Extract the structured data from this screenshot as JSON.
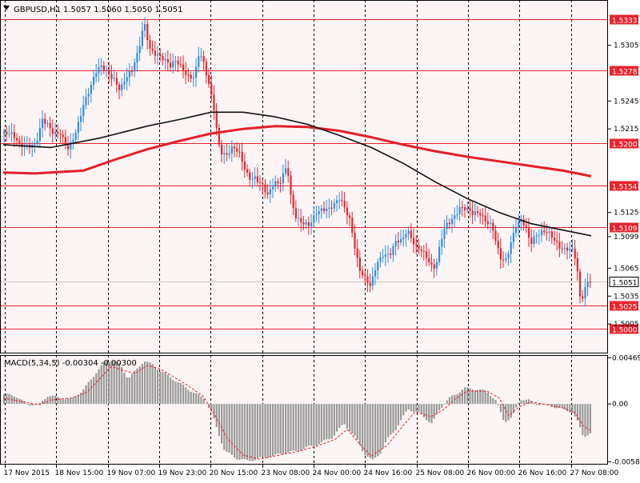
{
  "header": {
    "symbol": "GBPUSD,H1",
    "ohlc": "1.5057 1.5060 1.5050 1.5051",
    "dropdown_icon": "triangle-down-icon"
  },
  "indicator": {
    "label": "MACD(5,34,5) -0.00304 -0.00300"
  },
  "colors": {
    "background": "#fdf5f5",
    "grid": "#000000",
    "bull_candle": "#2b8ee8",
    "bear_candle": "#e8242c",
    "hline": "#e8242c",
    "ma_fast": "#111111",
    "ma_slow": "#e2202a",
    "macd_bar": "#999999",
    "macd_signal": "#e8242c",
    "current_price_line": "#c8c8c8"
  },
  "chart_data": [
    {
      "type": "candlestick",
      "symbol": "GBPUSD",
      "timeframe": "H1",
      "ylim": [
        1.4975,
        1.5352
      ],
      "y_tick_labels": [
        "1.5305",
        "1.5245",
        "1.5215",
        "1.5125",
        "1.5099",
        "1.5065",
        "1.5035",
        "1.5005"
      ],
      "x_tick_labels": [
        "17 Nov 2015",
        "18 Nov 15:00",
        "19 Nov 07:00",
        "19 Nov 23:00",
        "20 Nov 15:00",
        "23 Nov 08:00",
        "24 Nov 00:00",
        "24 Nov 16:00",
        "25 Nov 08:00",
        "26 Nov 00:00",
        "26 Nov 16:00",
        "27 Nov 08:00"
      ],
      "horizontal_levels": [
        {
          "label": "1.5333",
          "value": 1.5333
        },
        {
          "label": "1.5278",
          "value": 1.5278
        },
        {
          "label": "1.5200",
          "value": 1.52
        },
        {
          "label": "1.5154",
          "value": 1.5154
        },
        {
          "label": "1.5109",
          "value": 1.5109
        },
        {
          "label": "1.5025",
          "value": 1.5025
        },
        {
          "label": "1.5000",
          "value": 1.5
        }
      ],
      "current_price": {
        "label": "1.5051",
        "value": 1.5051
      },
      "close_path": [
        [
          0,
          1.521
        ],
        [
          10,
          1.5205
        ],
        [
          20,
          1.5195
        ],
        [
          30,
          1.52
        ],
        [
          40,
          1.5203
        ],
        [
          48,
          1.5225
        ],
        [
          55,
          1.5215
        ],
        [
          62,
          1.5205
        ],
        [
          70,
          1.521
        ],
        [
          80,
          1.5198
        ],
        [
          90,
          1.5215
        ],
        [
          100,
          1.524
        ],
        [
          108,
          1.5255
        ],
        [
          115,
          1.5275
        ],
        [
          122,
          1.5285
        ],
        [
          130,
          1.528
        ],
        [
          138,
          1.527
        ],
        [
          145,
          1.5255
        ],
        [
          152,
          1.5265
        ],
        [
          160,
          1.5275
        ],
        [
          168,
          1.53
        ],
        [
          175,
          1.5335
        ],
        [
          182,
          1.5305
        ],
        [
          190,
          1.5295
        ],
        [
          200,
          1.5285
        ],
        [
          208,
          1.528
        ],
        [
          215,
          1.529
        ],
        [
          222,
          1.5285
        ],
        [
          230,
          1.5275
        ],
        [
          238,
          1.527
        ],
        [
          244,
          1.5295
        ],
        [
          250,
          1.528
        ],
        [
          256,
          1.526
        ],
        [
          262,
          1.524
        ],
        [
          266,
          1.5215
        ],
        [
          270,
          1.5195
        ],
        [
          278,
          1.519
        ],
        [
          286,
          1.5195
        ],
        [
          294,
          1.5185
        ],
        [
          300,
          1.517
        ],
        [
          306,
          1.516
        ],
        [
          314,
          1.5165
        ],
        [
          322,
          1.516
        ],
        [
          330,
          1.5145
        ],
        [
          338,
          1.5155
        ],
        [
          344,
          1.515
        ],
        [
          350,
          1.5165
        ],
        [
          354,
          1.5175
        ],
        [
          358,
          1.5145
        ],
        [
          364,
          1.5125
        ],
        [
          370,
          1.512
        ],
        [
          376,
          1.5115
        ],
        [
          382,
          1.511
        ],
        [
          390,
          1.512
        ],
        [
          398,
          1.5125
        ],
        [
          406,
          1.513
        ],
        [
          414,
          1.514
        ],
        [
          420,
          1.5145
        ],
        [
          426,
          1.513
        ],
        [
          432,
          1.5115
        ],
        [
          438,
          1.5085
        ],
        [
          444,
          1.506
        ],
        [
          450,
          1.5055
        ],
        [
          458,
          1.505
        ],
        [
          466,
          1.5075
        ],
        [
          474,
          1.508
        ],
        [
          482,
          1.5075
        ],
        [
          490,
          1.509
        ],
        [
          498,
          1.5095
        ],
        [
          504,
          1.511
        ],
        [
          510,
          1.51
        ],
        [
          516,
          1.509
        ],
        [
          522,
          1.5085
        ],
        [
          530,
          1.507
        ],
        [
          536,
          1.506
        ],
        [
          540,
          1.5065
        ],
        [
          546,
          1.5095
        ],
        [
          552,
          1.5115
        ],
        [
          558,
          1.512
        ],
        [
          564,
          1.5125
        ],
        [
          570,
          1.513
        ],
        [
          578,
          1.5125
        ],
        [
          586,
          1.512
        ],
        [
          594,
          1.5125
        ],
        [
          602,
          1.512
        ],
        [
          610,
          1.5115
        ],
        [
          616,
          1.509
        ],
        [
          622,
          1.507
        ],
        [
          628,
          1.507
        ],
        [
          634,
          1.509
        ],
        [
          640,
          1.511
        ],
        [
          646,
          1.512
        ],
        [
          652,
          1.5115
        ],
        [
          658,
          1.5095
        ],
        [
          664,
          1.51
        ],
        [
          672,
          1.51
        ],
        [
          680,
          1.51
        ],
        [
          688,
          1.5095
        ],
        [
          696,
          1.509
        ],
        [
          704,
          1.509
        ],
        [
          712,
          1.5085
        ],
        [
          716,
          1.5065
        ],
        [
          720,
          1.503
        ],
        [
          724,
          1.503
        ],
        [
          728,
          1.5045
        ],
        [
          734,
          1.5051
        ]
      ],
      "ma_fast_path": [
        [
          0,
          1.5198
        ],
        [
          60,
          1.5195
        ],
        [
          120,
          1.5205
        ],
        [
          180,
          1.5218
        ],
        [
          220,
          1.5225
        ],
        [
          260,
          1.5233
        ],
        [
          300,
          1.5233
        ],
        [
          340,
          1.5228
        ],
        [
          380,
          1.522
        ],
        [
          420,
          1.5208
        ],
        [
          460,
          1.5195
        ],
        [
          500,
          1.5178
        ],
        [
          540,
          1.5158
        ],
        [
          580,
          1.514
        ],
        [
          620,
          1.5125
        ],
        [
          660,
          1.5113
        ],
        [
          700,
          1.5106
        ],
        [
          735,
          1.51
        ]
      ],
      "ma_slow_path": [
        [
          0,
          1.5168
        ],
        [
          40,
          1.5167
        ],
        [
          100,
          1.517
        ],
        [
          140,
          1.5182
        ],
        [
          180,
          1.5193
        ],
        [
          220,
          1.5202
        ],
        [
          260,
          1.521
        ],
        [
          300,
          1.5215
        ],
        [
          340,
          1.5218
        ],
        [
          380,
          1.5217
        ],
        [
          420,
          1.5213
        ],
        [
          460,
          1.5206
        ],
        [
          500,
          1.5198
        ],
        [
          540,
          1.5191
        ],
        [
          580,
          1.5185
        ],
        [
          620,
          1.518
        ],
        [
          660,
          1.5175
        ],
        [
          700,
          1.517
        ],
        [
          735,
          1.5164
        ]
      ]
    },
    {
      "type": "bar",
      "indicator": "MACD(5,34,5)",
      "ylim": [
        -0.006,
        0.0048
      ],
      "y_tick_labels": [
        "0.00469",
        "0.00",
        "-0.00588"
      ],
      "histogram_path": [
        [
          0,
          0.001
        ],
        [
          15,
          0.0008
        ],
        [
          30,
          -0.0001
        ],
        [
          45,
          0.0
        ],
        [
          55,
          0.0009
        ],
        [
          70,
          0.0006
        ],
        [
          85,
          0.0005
        ],
        [
          100,
          0.0015
        ],
        [
          115,
          0.0032
        ],
        [
          125,
          0.0042
        ],
        [
          135,
          0.0045
        ],
        [
          145,
          0.004
        ],
        [
          155,
          0.0026
        ],
        [
          165,
          0.0034
        ],
        [
          175,
          0.0044
        ],
        [
          185,
          0.004
        ],
        [
          195,
          0.0034
        ],
        [
          210,
          0.0026
        ],
        [
          225,
          0.0018
        ],
        [
          240,
          0.001
        ],
        [
          250,
          0.0006
        ],
        [
          260,
          -0.001
        ],
        [
          268,
          -0.003
        ],
        [
          276,
          -0.0048
        ],
        [
          290,
          -0.0055
        ],
        [
          305,
          -0.0058
        ],
        [
          320,
          -0.0055
        ],
        [
          335,
          -0.0053
        ],
        [
          350,
          -0.005
        ],
        [
          365,
          -0.0048
        ],
        [
          380,
          -0.0044
        ],
        [
          395,
          -0.004
        ],
        [
          410,
          -0.0034
        ],
        [
          425,
          -0.002
        ],
        [
          440,
          -0.0035
        ],
        [
          450,
          -0.005
        ],
        [
          460,
          -0.0058
        ],
        [
          470,
          -0.005
        ],
        [
          480,
          -0.0035
        ],
        [
          490,
          -0.0025
        ],
        [
          505,
          -0.0005
        ],
        [
          520,
          -0.001
        ],
        [
          535,
          -0.002
        ],
        [
          545,
          -0.0005
        ],
        [
          555,
          0.0005
        ],
        [
          565,
          0.001
        ],
        [
          575,
          0.0016
        ],
        [
          590,
          0.0015
        ],
        [
          605,
          0.0012
        ],
        [
          615,
          0.0003
        ],
        [
          625,
          -0.0018
        ],
        [
          635,
          -0.0014
        ],
        [
          645,
          0.0005
        ],
        [
          655,
          0.0004
        ],
        [
          665,
          0.0
        ],
        [
          680,
          -0.0001
        ],
        [
          695,
          -0.0005
        ],
        [
          710,
          -0.0008
        ],
        [
          718,
          -0.002
        ],
        [
          724,
          -0.0033
        ],
        [
          734,
          -0.003
        ]
      ],
      "signal_path": [
        [
          0,
          0.0006
        ],
        [
          25,
          0.0002
        ],
        [
          45,
          -0.0001
        ],
        [
          60,
          0.0004
        ],
        [
          85,
          0.0006
        ],
        [
          105,
          0.0012
        ],
        [
          120,
          0.0025
        ],
        [
          135,
          0.0038
        ],
        [
          150,
          0.0034
        ],
        [
          165,
          0.0031
        ],
        [
          180,
          0.0039
        ],
        [
          195,
          0.0036
        ],
        [
          210,
          0.0029
        ],
        [
          230,
          0.0019
        ],
        [
          250,
          0.0008
        ],
        [
          265,
          -0.0012
        ],
        [
          280,
          -0.0035
        ],
        [
          300,
          -0.0052
        ],
        [
          320,
          -0.0056
        ],
        [
          345,
          -0.0052
        ],
        [
          370,
          -0.0048
        ],
        [
          395,
          -0.0042
        ],
        [
          415,
          -0.0036
        ],
        [
          430,
          -0.0026
        ],
        [
          445,
          -0.004
        ],
        [
          460,
          -0.0053
        ],
        [
          480,
          -0.0042
        ],
        [
          500,
          -0.0022
        ],
        [
          515,
          -0.0008
        ],
        [
          535,
          -0.0013
        ],
        [
          550,
          -0.0006
        ],
        [
          565,
          0.0005
        ],
        [
          580,
          0.0013
        ],
        [
          605,
          0.0013
        ],
        [
          620,
          0.0006
        ],
        [
          632,
          -0.0012
        ],
        [
          645,
          -0.0003
        ],
        [
          660,
          0.0002
        ],
        [
          680,
          -0.0001
        ],
        [
          700,
          -0.0004
        ],
        [
          715,
          -0.0009
        ],
        [
          725,
          -0.0022
        ],
        [
          734,
          -0.0027
        ]
      ]
    }
  ]
}
